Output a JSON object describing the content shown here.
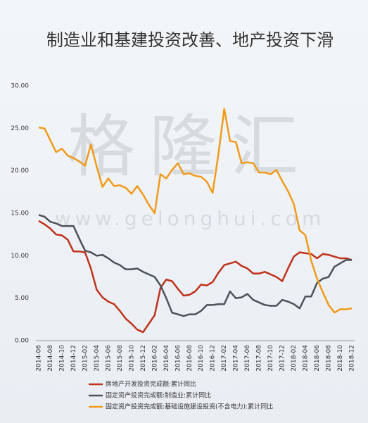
{
  "chart_data": {
    "type": "line",
    "title": "制造业和基建投资改善、地产投资下滑",
    "watermark": "格隆汇",
    "watermark_url": "www.gelonghui.com",
    "categories": [
      "2014-06",
      null,
      "2014-08",
      null,
      "2014-10",
      null,
      "2014-12",
      null,
      "2015-02",
      null,
      "2015-04",
      null,
      "2015-06",
      null,
      "2015-08",
      null,
      "2015-10",
      null,
      "2015-12",
      null,
      "2016-02",
      null,
      "2016-04",
      null,
      "2016-06",
      null,
      "2016-08",
      null,
      "2016-10",
      null,
      "2016-12",
      null,
      "2017-02",
      null,
      "2017-04",
      null,
      "2017-06",
      null,
      "2017-08",
      null,
      "2017-10",
      null,
      "2017-12",
      null,
      "2018-02",
      null,
      "2018-04",
      null,
      "2018-06",
      null,
      "2018-08",
      null,
      "2018-10",
      null,
      "2018-12"
    ],
    "series": [
      {
        "name": "房地产开发投资完成额:累计同比",
        "color": "#c0311b",
        "values": [
          14.1,
          13.7,
          13.2,
          12.5,
          12.4,
          11.9,
          10.5,
          10.5,
          10.4,
          8.5,
          6.0,
          5.1,
          4.6,
          4.3,
          3.5,
          2.6,
          2.0,
          1.3,
          1.0,
          2.0,
          3.0,
          6.2,
          7.2,
          7.0,
          6.1,
          5.3,
          5.4,
          5.8,
          6.6,
          6.5,
          6.9,
          8.0,
          8.9,
          9.1,
          9.3,
          8.8,
          8.5,
          7.9,
          7.9,
          8.1,
          7.8,
          7.5,
          7.0,
          8.5,
          9.9,
          10.4,
          10.3,
          10.2,
          9.7,
          10.2,
          10.1,
          9.9,
          9.7,
          9.7,
          9.5
        ]
      },
      {
        "name": "固定资产投资完成额:制造业:累计同比",
        "color": "#4a5258",
        "values": [
          14.8,
          14.6,
          14.0,
          13.8,
          13.5,
          13.5,
          13.5,
          12.0,
          10.6,
          10.4,
          10.0,
          10.1,
          9.7,
          9.2,
          8.9,
          8.4,
          8.4,
          8.5,
          8.1,
          7.8,
          7.5,
          6.5,
          5.0,
          3.3,
          3.1,
          2.9,
          3.1,
          3.1,
          3.5,
          4.2,
          4.2,
          4.3,
          4.3,
          5.8,
          5.0,
          5.1,
          5.5,
          4.8,
          4.5,
          4.2,
          4.1,
          4.1,
          4.8,
          4.6,
          4.3,
          3.8,
          5.2,
          5.2,
          6.8,
          7.3,
          7.5,
          8.7,
          9.1,
          9.5,
          9.5
        ]
      },
      {
        "name": "固定资产投资完成额:基础设施建设投资(不含电力):累计同比",
        "color": "#f09a1c",
        "values": [
          25.1,
          25.0,
          23.6,
          22.2,
          22.6,
          21.8,
          21.5,
          21.1,
          20.6,
          23.1,
          20.5,
          18.1,
          19.1,
          18.2,
          18.3,
          18.0,
          17.3,
          18.2,
          17.2,
          16.0,
          15.0,
          19.6,
          19.1,
          20.1,
          20.9,
          19.6,
          19.7,
          19.4,
          19.3,
          18.7,
          17.4,
          22.0,
          27.3,
          23.5,
          23.4,
          20.9,
          21.0,
          20.9,
          19.8,
          19.8,
          19.6,
          20.1,
          18.8,
          17.6,
          16.1,
          13.0,
          12.4,
          9.4,
          7.3,
          5.7,
          4.2,
          3.3,
          3.7,
          3.7,
          3.8
        ]
      }
    ],
    "ylim": [
      0,
      30
    ],
    "yticks": [
      {
        "value": 0,
        "label": "0.00"
      },
      {
        "value": 5,
        "label": "5.00"
      },
      {
        "value": 10,
        "label": "10.00"
      },
      {
        "value": 15,
        "label": "15.00"
      },
      {
        "value": 20,
        "label": "20.00"
      },
      {
        "value": 25,
        "label": "25.00"
      },
      {
        "value": 30,
        "label": "30.00"
      }
    ]
  }
}
